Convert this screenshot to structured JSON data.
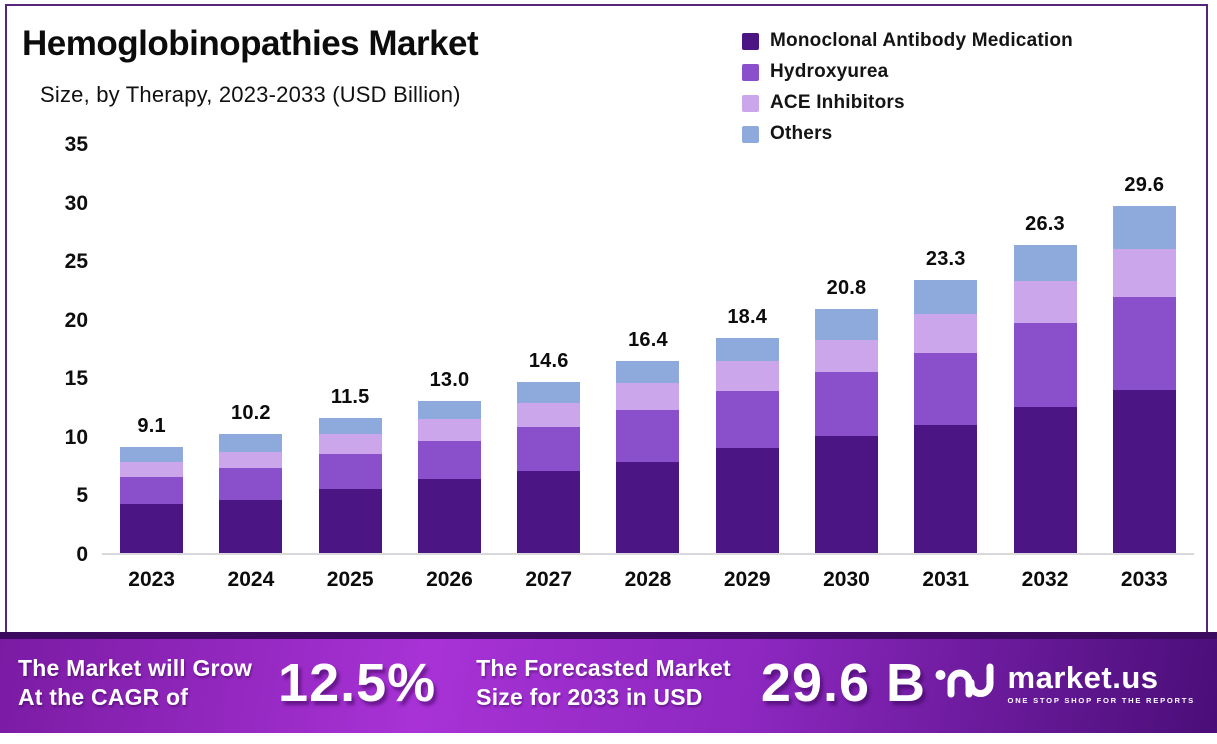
{
  "header": {
    "title": "Hemoglobinopathies Market",
    "subtitle": "Size, by Therapy, 2023-2033 (USD Billion)"
  },
  "chart_data": {
    "type": "bar",
    "stacked": true,
    "title": "Hemoglobinopathies Market",
    "subtitle": "Size, by Therapy, 2023-2033 (USD Billion)",
    "xlabel": "",
    "ylabel": "USD Billion",
    "ylim": [
      0,
      35
    ],
    "y_ticks": [
      0,
      5,
      10,
      15,
      20,
      25,
      30,
      35
    ],
    "grid": false,
    "legend_position": "top-right",
    "categories": [
      "2023",
      "2024",
      "2025",
      "2026",
      "2027",
      "2028",
      "2029",
      "2030",
      "2031",
      "2032",
      "2033"
    ],
    "series": [
      {
        "name": "Monoclonal Antibody Medication",
        "color": "#4b1583",
        "values": [
          4.2,
          4.5,
          5.5,
          6.3,
          7.0,
          7.8,
          9.0,
          10.0,
          10.9,
          12.5,
          13.9
        ]
      },
      {
        "name": "Hydroxyurea",
        "color": "#8a50cb",
        "values": [
          2.3,
          2.8,
          3.0,
          3.3,
          3.8,
          4.4,
          4.8,
          5.5,
          6.2,
          7.1,
          8.0
        ]
      },
      {
        "name": "ACE Inhibitors",
        "color": "#cba6ea",
        "values": [
          1.3,
          1.3,
          1.7,
          1.8,
          2.0,
          2.3,
          2.6,
          2.7,
          3.3,
          3.6,
          4.1
        ]
      },
      {
        "name": "Others",
        "color": "#8ea9dc",
        "values": [
          1.3,
          1.6,
          1.3,
          1.6,
          1.8,
          1.9,
          2.0,
          2.6,
          2.9,
          3.1,
          3.6
        ]
      }
    ],
    "total_labels": [
      "9.1",
      "10.2",
      "11.5",
      "13.0",
      "14.6",
      "16.4",
      "18.4",
      "20.8",
      "23.3",
      "26.3",
      "29.6"
    ]
  },
  "banner": {
    "cagr_label_line1": "The Market will Grow",
    "cagr_label_line2": "At the CAGR of",
    "cagr_value": "12.5%",
    "forecast_label_line1": "The Forecasted Market",
    "forecast_label_line2": "Size for 2033 in USD",
    "forecast_value": "29.6 B",
    "logo_name": "market.us",
    "logo_tagline": "ONE STOP SHOP FOR THE REPORTS"
  },
  "colors": {
    "frame_border": "#54257a",
    "axis_line": "#d9d9dd",
    "banner_gradient_start": "#7a1ba3",
    "banner_gradient_mid": "#a832d6",
    "banner_gradient_end": "#4a0e78",
    "banner_top_strip": "#3c0a5e",
    "text": "#0c0c0c",
    "banner_text": "#ffffff"
  }
}
